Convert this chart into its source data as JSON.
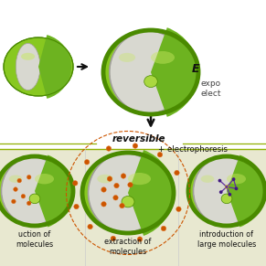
{
  "bg_top": "#ffffff",
  "bg_bottom": "#e8e8d0",
  "green_outer": "#6db320",
  "green_mid": "#88c820",
  "green_light": "#aad840",
  "green_dark": "#4a8a00",
  "green_highlight": "#c8e860",
  "gray_membrane": "#c0c0b8",
  "gray_light": "#d8d8d0",
  "gray_dark": "#a0a098",
  "orange_dot": "#cc5500",
  "orange_bright": "#e07020",
  "purple_mol": "#6030a0",
  "purple_dark": "#401880",
  "yellow_dot": "#d8c000",
  "arrow_color": "#111111",
  "line_color": "#90b000",
  "separator_color": "#90b000",
  "text_color": "#111111",
  "title": "reversible",
  "electrophoresis": "+ electrophoresis",
  "E_label": "E",
  "expo_text": "expo",
  "elec_text": "elect",
  "label1": "uction of\nmolecules",
  "label2": "extraction of\nmolecules",
  "label3": "introduction of\nlarge molecules"
}
